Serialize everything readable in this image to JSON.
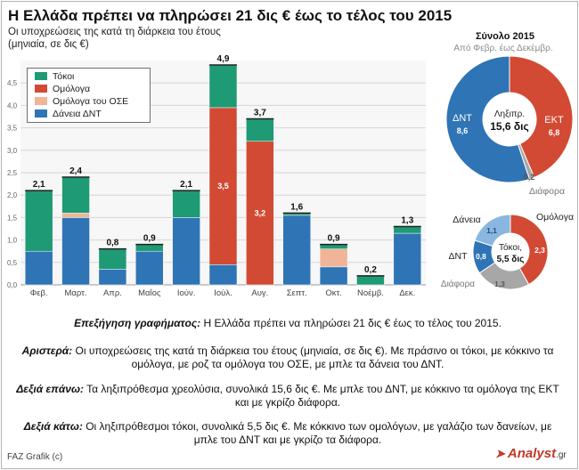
{
  "title": "Η Ελλάδα πρέπει να πληρώσει 21 δις € έως το τέλος του 2015",
  "subtitle_line1": "Οι υποχρεώσεις της κατά τη διάρκεια του έτους",
  "subtitle_line2": "(μηνιαία, σε δις €)",
  "legend": [
    "Τόκοι",
    "Ομόλογα",
    "Ομόλογα του ΟΣΕ",
    "Δάνεια ΔΝΤ"
  ],
  "colors": {
    "interest": "#1e9a74",
    "bonds": "#d24a34",
    "ose_bonds": "#f0b496",
    "imf_loans": "#2f74b5",
    "other": "#a7a7a7",
    "loans_light": "#8ab7e0"
  },
  "chart_data": [
    {
      "type": "bar",
      "stacked": true,
      "categories": [
        "Φεβ.",
        "Μαρτ.",
        "Απρ.",
        "Μαΐος",
        "Ιούν.",
        "Ιούλ.",
        "Αυγ.",
        "Σεπτ.",
        "Οκτ.",
        "Νοέμβ.",
        "Δεκ."
      ],
      "totals": [
        "2,1",
        "2,4",
        "0,8",
        "0,9",
        "2,1",
        "4,9",
        "3,7",
        "1,6",
        "0,9",
        "0,2",
        "1,3"
      ],
      "series": [
        {
          "name": "Δάνεια ΔΝΤ",
          "values": [
            0.75,
            1.5,
            0.35,
            0.75,
            1.5,
            0.45,
            0,
            1.55,
            0.4,
            0,
            1.15
          ]
        },
        {
          "name": "Ομόλογα του ΟΣΕ",
          "values": [
            0,
            0.1,
            0,
            0,
            0,
            0,
            0,
            0,
            0.4,
            0,
            0
          ]
        },
        {
          "name": "Ομόλογα",
          "values": [
            0,
            0,
            0,
            0,
            0,
            3.5,
            3.2,
            0,
            0,
            0,
            0
          ]
        },
        {
          "name": "Τόκοι",
          "values": [
            1.35,
            0.8,
            0.45,
            0.15,
            0.6,
            0.95,
            0.5,
            0.05,
            0.1,
            0.2,
            0.15
          ]
        }
      ],
      "inner_labels": {
        "Ιούλ.": "3,5",
        "Αυγ.": "3,2"
      },
      "yticks": [
        "0,0",
        "0,5",
        "1,0",
        "1,5",
        "2,0",
        "2,5",
        "3,0",
        "3,5",
        "4,0",
        "4,5"
      ],
      "ylim": [
        0,
        5
      ],
      "grid": true,
      "legend_position": "top-left"
    },
    {
      "type": "pie",
      "title": "Σύνολο 2015",
      "subtitle": "Από Φεβρ. έως Δεκέμβρ.",
      "center_label_1": "Ληξιπρ.",
      "center_label_2": "15,6 δις",
      "slices": [
        {
          "name": "ΕΚΤ",
          "value": 6.8,
          "label": "6,8"
        },
        {
          "name": "Διάφορα",
          "value": 0.2,
          "label": "0,2"
        },
        {
          "name": "ΔΝΤ",
          "value": 8.6,
          "label": "8,6"
        }
      ]
    },
    {
      "type": "pie",
      "center_label_1": "Τόκοι,",
      "center_label_2": "5,5 δις",
      "slices": [
        {
          "name": "Ομόλογα",
          "value": 2.3,
          "label": "2,3"
        },
        {
          "name": "Διάφορα",
          "value": 1.3,
          "label": "1,3"
        },
        {
          "name": "ΔΝΤ",
          "value": 0.8,
          "label": "0,8"
        },
        {
          "name": "Δάνεια",
          "value": 1.1,
          "label": "1,1"
        }
      ]
    }
  ],
  "explanations": [
    {
      "label": "Επεξήγηση γραφήματος:",
      "text": " Η Ελλάδα πρέπει να πληρώσει 21 δις € έως το τέλος του 2015."
    },
    {
      "label": "Αριστερά:",
      "text": " Οι υποχρεώσεις της κατά τη διάρκεια του έτους (μηνιαία, σε δις €). Με πράσινο οι τόκοι, με κόκκινο τα ομόλογα, με ροζ τα ομόλογα του ΟΣΕ, με μπλε τα δάνεια του ΔΝΤ."
    },
    {
      "label": "Δεξιά επάνω:",
      "text": " Τα ληξιπρόθεσμα χρεολύσια, συνολικά 15,6 δις €. Με μπλε του ΔΝΤ, με κόκκινο τα ομόλογα της ΕΚΤ και με γκρίζο διάφορα."
    },
    {
      "label": "Δεξιά κάτω:",
      "text": " Οι ληξιπρόθεσμοι τόκοι, συνολικά 5,5 δις €. Με κόκκινο των ομολόγων, με γαλάζιο των δανείων, με μπλε του ΔΝΤ και με γκρίζο τα διάφορα."
    }
  ],
  "footer": "FAZ Grafik (c)",
  "logo_text": "Analyst",
  "logo_suffix": ".gr"
}
